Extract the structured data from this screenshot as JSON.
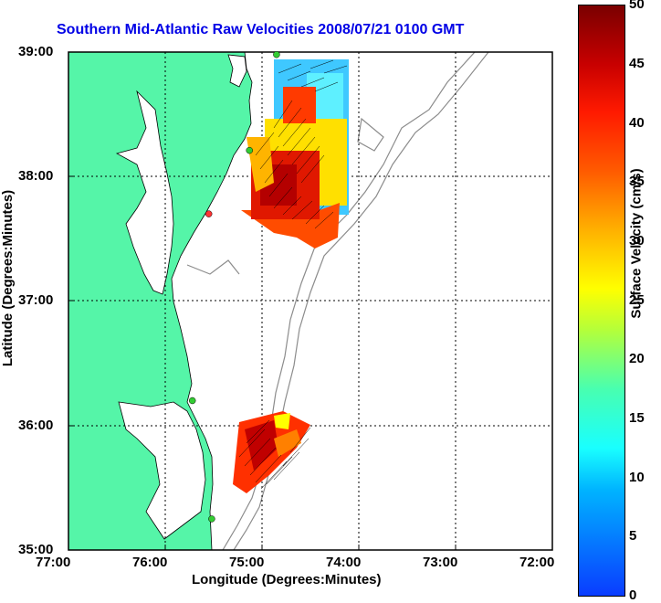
{
  "title": "Southern Mid-Atlantic Raw Velocities 2008/07/21 0100 GMT",
  "x_axis": {
    "label": "Longitude (Degrees:Minutes)",
    "ticks": [
      "77:00",
      "76:00",
      "75:00",
      "74:00",
      "73:00",
      "72:00"
    ]
  },
  "y_axis": {
    "label": "Latitude (Degrees:Minutes)",
    "ticks": [
      "39:00",
      "38:00",
      "37:00",
      "36:00",
      "35:00"
    ]
  },
  "colorbar": {
    "label": "Surface Velocity (cm/s)",
    "ticks": [
      "50",
      "45",
      "40",
      "35",
      "30",
      "25",
      "20",
      "15",
      "10",
      "5",
      "0"
    ],
    "range": [
      0,
      50
    ]
  },
  "colors": {
    "land": "#55f5a8",
    "title": "#0000e6",
    "grid": "#000000",
    "bathymetry": "#8c8c8c",
    "station": "#33cc33",
    "station_alert": "#ff3333"
  },
  "stations": [
    {
      "lon": -74.85,
      "lat": 38.98,
      "status": "ok"
    },
    {
      "lon": -75.13,
      "lat": 38.21,
      "status": "ok"
    },
    {
      "lon": -75.55,
      "lat": 37.7,
      "status": "alert"
    },
    {
      "lon": -75.72,
      "lat": 36.2,
      "status": "ok"
    },
    {
      "lon": -75.52,
      "lat": 35.25,
      "status": "ok"
    }
  ]
}
